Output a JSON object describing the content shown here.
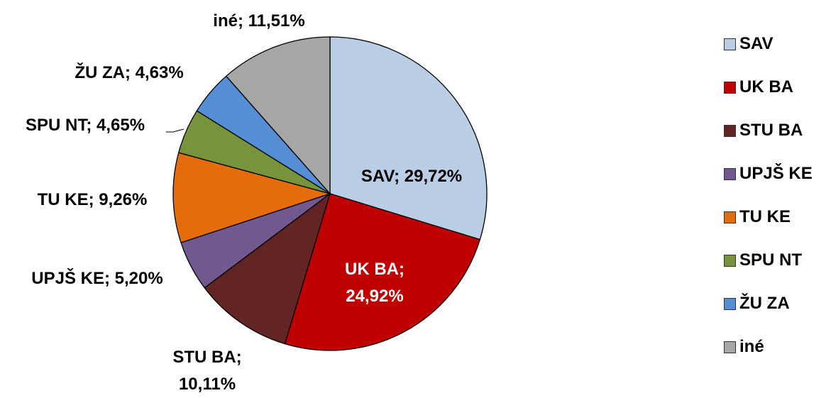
{
  "chart_data": {
    "type": "pie",
    "categories": [
      "SAV",
      "UK BA",
      "STU BA",
      "UPJŠ KE",
      "TU KE",
      "SPU NT",
      "ŽU ZA",
      "iné"
    ],
    "values": [
      29.72,
      24.92,
      10.11,
      5.2,
      9.26,
      4.65,
      4.63,
      11.51
    ],
    "value_labels": [
      "SAV; 29,72%",
      "UK BA; 24,92%",
      "STU BA; 10,11%",
      "UPJŠ KE; 5,20%",
      "TU KE; 9,26%",
      "SPU NT; 4,65%",
      "ŽU ZA; 4,63%",
      "iné; 11,51%"
    ],
    "colors": [
      "#b9cde5",
      "#c00000",
      "#632523",
      "#71588f",
      "#e46c0a",
      "#77933c",
      "#558ed5",
      "#a6a6a6"
    ],
    "legend": "right"
  }
}
